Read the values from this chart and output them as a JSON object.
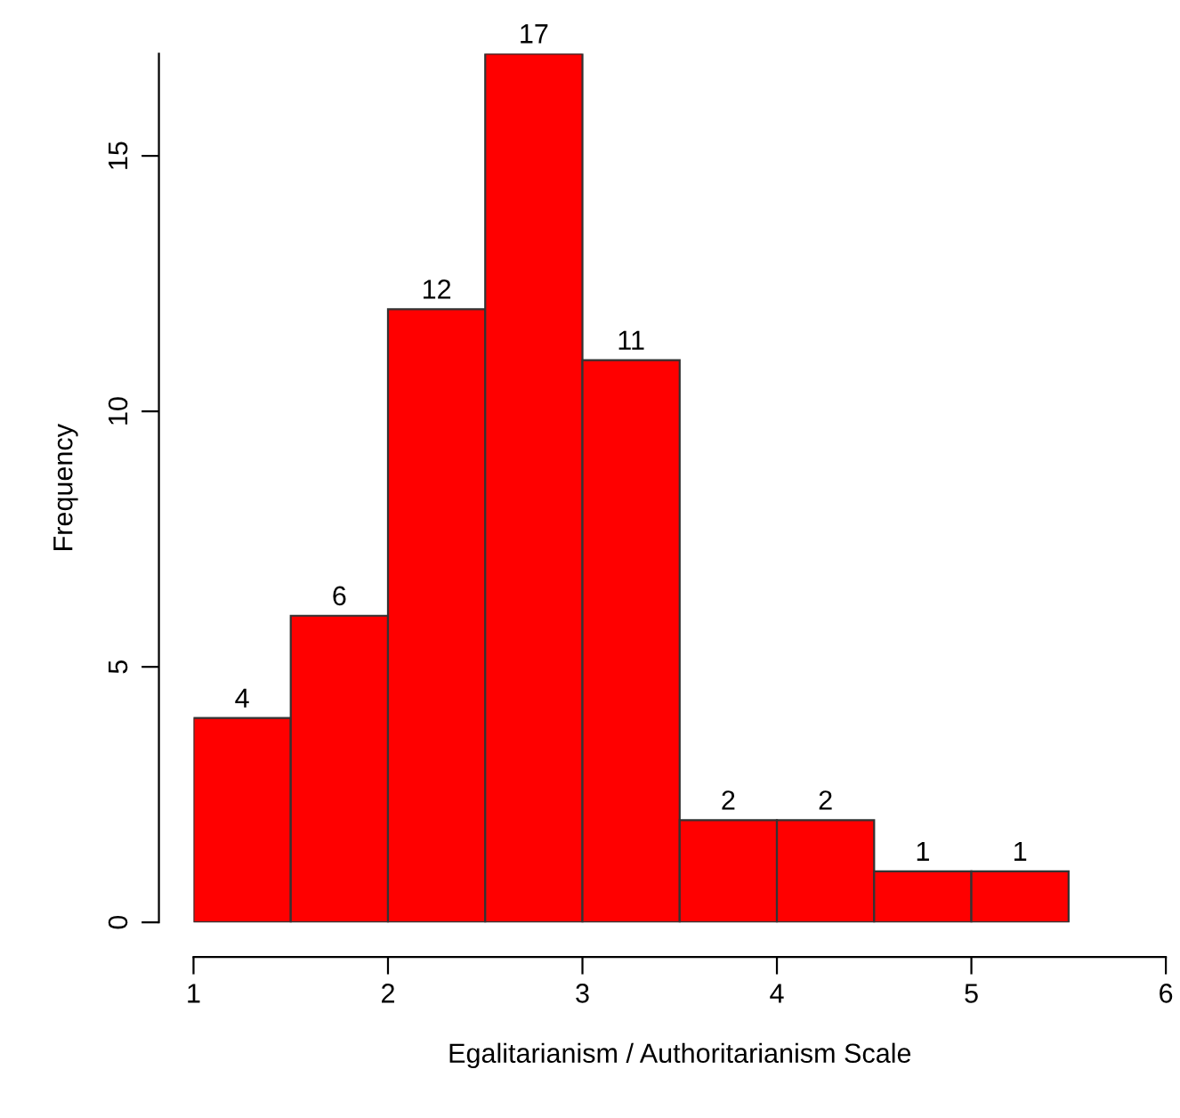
{
  "chart_data": {
    "type": "histogram",
    "xlabel": "Egalitarianism / Authoritarianism Scale",
    "ylabel": "Frequency",
    "bins": [
      1,
      1.5,
      2,
      2.5,
      3,
      3.5,
      4,
      4.5,
      5,
      5.5
    ],
    "values": [
      4,
      6,
      12,
      17,
      11,
      2,
      2,
      1,
      1
    ],
    "color": "#ff0000",
    "xlim": [
      1,
      6
    ],
    "xticks": [
      1,
      2,
      3,
      4,
      5,
      6
    ],
    "ylim": [
      0,
      17
    ],
    "yticks": [
      0,
      5,
      10,
      15
    ],
    "data_labels": true,
    "grid": false,
    "legend": false
  }
}
